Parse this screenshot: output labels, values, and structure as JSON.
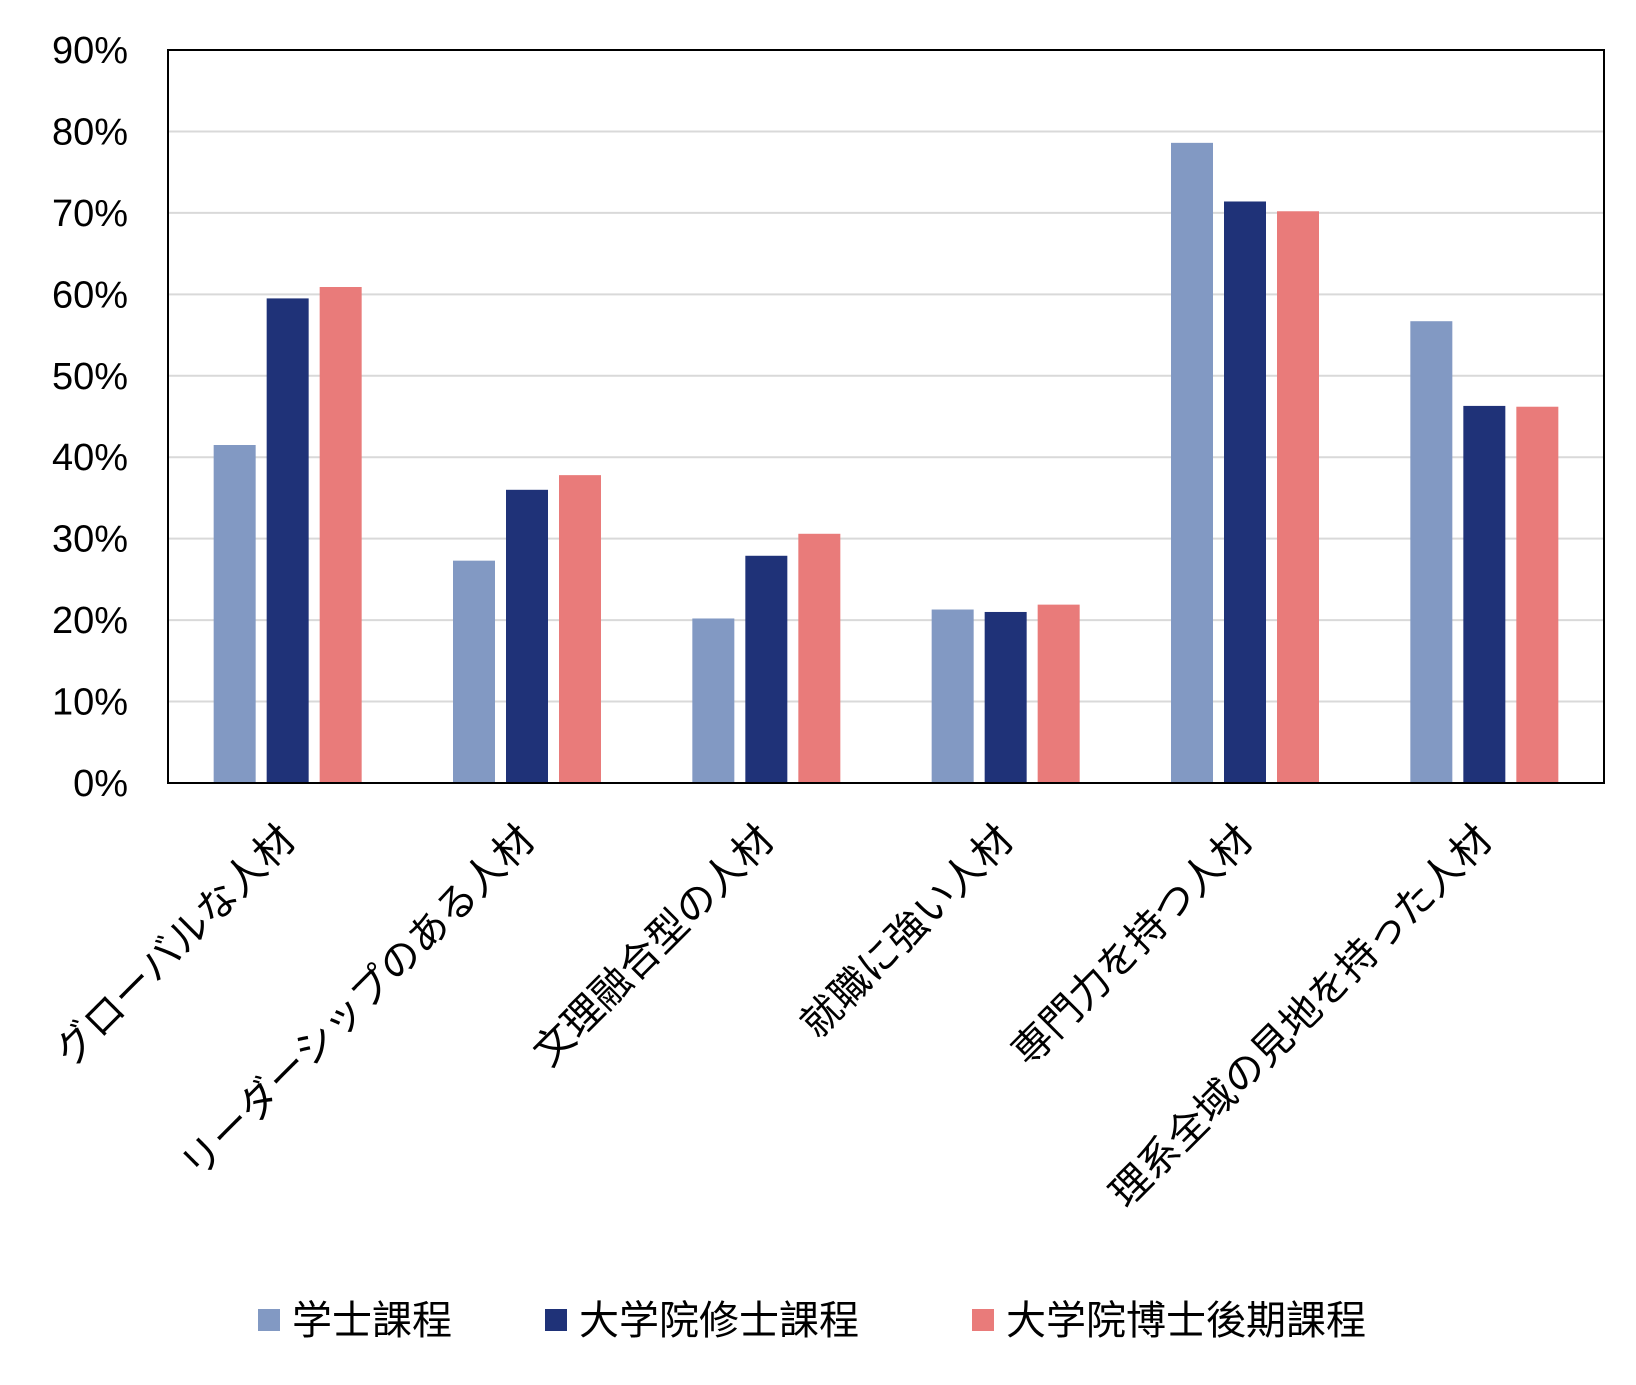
{
  "chart_data": {
    "type": "bar",
    "title": "",
    "xlabel": "",
    "ylabel": "",
    "ylim": [
      0,
      90
    ],
    "y_unit": "%",
    "y_ticks": [
      "0%",
      "10%",
      "20%",
      "30%",
      "40%",
      "50%",
      "60%",
      "70%",
      "80%",
      "90%"
    ],
    "grid": true,
    "legend_position": "bottom",
    "categories": [
      "グローバルな人材",
      "リーダーシップのある人材",
      "文理融合型の人材",
      "就職に強い人材",
      "専門力を持つ人材",
      "理系全域の見地を持った人材"
    ],
    "series": [
      {
        "name": "学士課程",
        "color": "#8299C3",
        "values": [
          41.5,
          27.3,
          20.2,
          21.3,
          78.6,
          56.7
        ]
      },
      {
        "name": "大学院修士課程",
        "color": "#1F3278",
        "values": [
          59.5,
          36.0,
          27.9,
          21.0,
          71.4,
          46.3
        ]
      },
      {
        "name": "大学院博士後期課程",
        "color": "#E97B7A",
        "values": [
          60.9,
          37.8,
          30.6,
          21.9,
          70.2,
          46.2
        ]
      }
    ]
  }
}
